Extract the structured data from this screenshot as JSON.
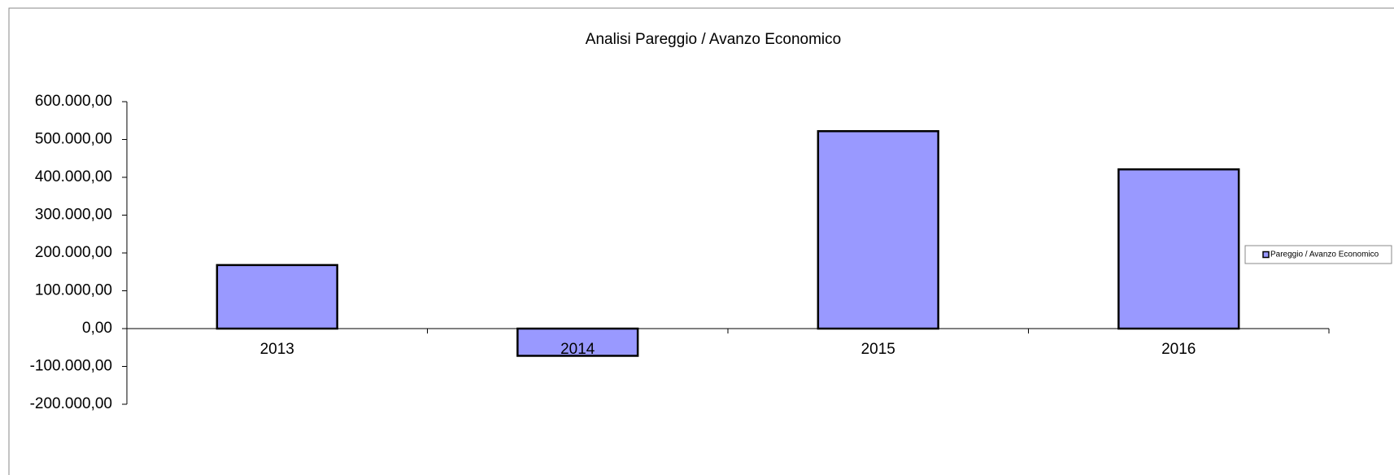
{
  "chart_data": {
    "type": "bar",
    "title": "Analisi Pareggio / Avanzo Economico",
    "categories": [
      "2013",
      "2014",
      "2015",
      "2016"
    ],
    "series": [
      {
        "name": "Pareggio / Avanzo Economico",
        "color": "#9999ff",
        "values": [
          168000,
          -72000,
          522000,
          421000
        ]
      }
    ],
    "ylim": [
      -200000,
      600000
    ],
    "yticks": [
      {
        "value": -200000,
        "label": "-200.000,00"
      },
      {
        "value": -100000,
        "label": "-100.000,00"
      },
      {
        "value": 0,
        "label": "0,00"
      },
      {
        "value": 100000,
        "label": "100.000,00"
      },
      {
        "value": 200000,
        "label": "200.000,00"
      },
      {
        "value": 300000,
        "label": "300.000,00"
      },
      {
        "value": 400000,
        "label": "400.000,00"
      },
      {
        "value": 500000,
        "label": "500.000,00"
      },
      {
        "value": 600000,
        "label": "600.000,00"
      }
    ],
    "grid": false,
    "legend": "right"
  }
}
